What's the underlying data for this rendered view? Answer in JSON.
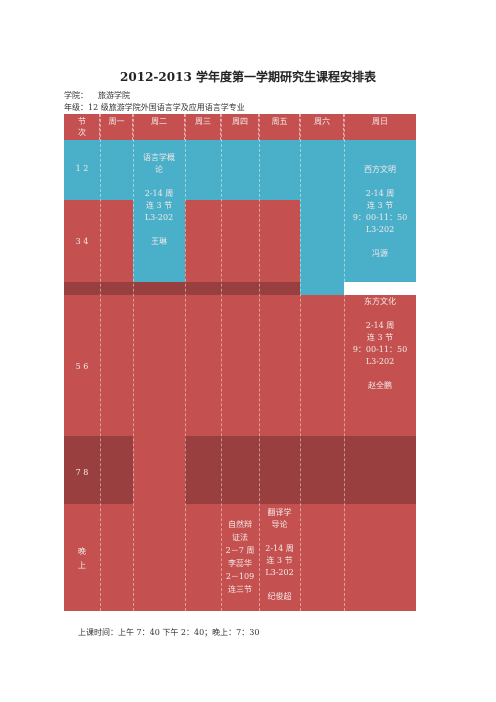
{
  "title": "2012-2013 学年度第一学期研究生课程安排表",
  "college_label": "学院：",
  "college_value": "旅游学院",
  "grade_line": "年级：12 级旅游学院外国语言学及应用语言学专业",
  "headers": {
    "period_line1": "节",
    "period_line2": "次",
    "mon": "周一",
    "tue": "周二",
    "wed": "周三",
    "thu": "周四",
    "fri": "周五",
    "sat": "周六",
    "sun": "周日"
  },
  "rows": {
    "r12": "1 2",
    "r34": "3 4",
    "r56": "5 6",
    "r78": "7 8",
    "evening_1": "晚",
    "evening_2": "上"
  },
  "courses": {
    "tue_am": "语言学概\n论\n\n2-14 周\n连 3 节\nL3-202\n\n王琳",
    "sun_am": "西方文明\n\n2-14 周\n连 3 节\n9：00-11：50\nL3-202\n\n冯源",
    "sun_pm": "东方文化\n\n2-14 周\n连 3 节\n9：00-11：50\nL3-202\n\n赵全鹏",
    "thu_eve": "自然辩\n证法\n2－7 周\n李蕊华\n2－109\n连三节",
    "fri_eve": "翻译学\n导论\n\n2-14 周\n连 3 节\nL3-202\n\n纪俊超"
  },
  "footer": "上课时间：上午 7：40 下午 2：40；晚上：7：30",
  "colors": {
    "red": "#c45150",
    "blue": "#4aafc9",
    "dark_red": "#9a3f3f"
  }
}
